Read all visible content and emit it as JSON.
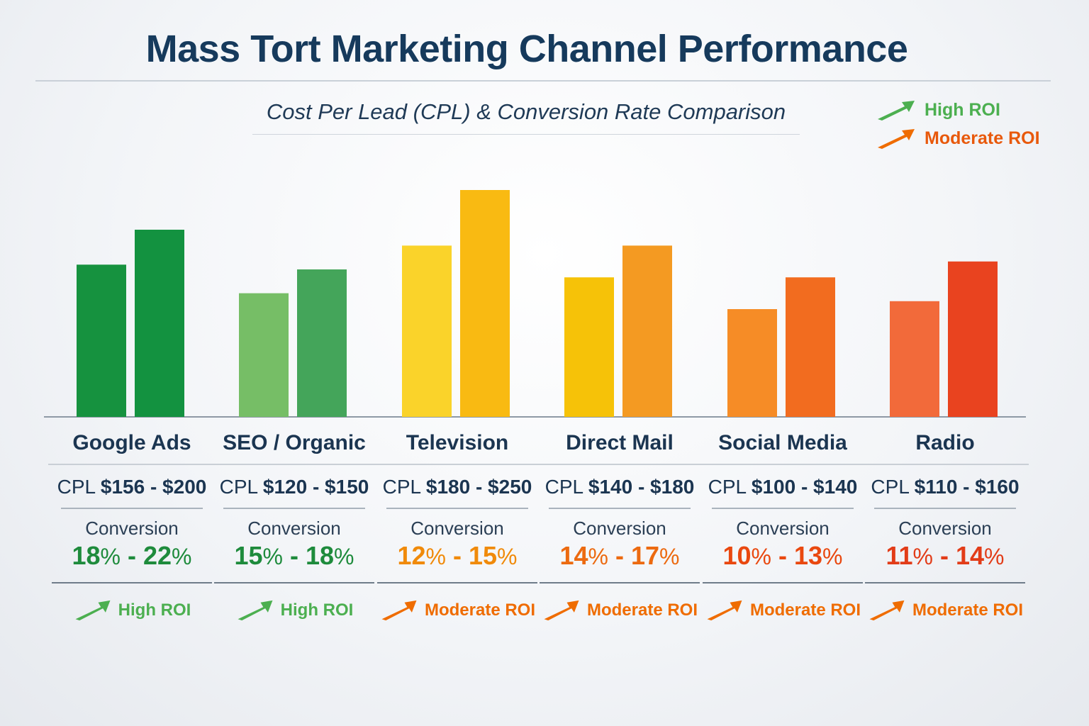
{
  "colors": {
    "high_roi": "#4caf50",
    "moderate_roi": "#ef6c00",
    "title": "#163a5c"
  },
  "legend": [
    {
      "label": "High ROI",
      "color": "#4caf50",
      "icon": "arrow-up-right-icon"
    },
    {
      "label": "Moderate ROI",
      "color": "#ef6c00",
      "icon": "arrow-up-right-icon"
    }
  ],
  "chart_data": {
    "type": "bar",
    "title": "Mass Tort Marketing Channel Performance",
    "subtitle": "Cost Per Lead (CPL) & Conversion Rate Comparison",
    "categories": [
      "Google Ads",
      "SEO / Organic",
      "Television",
      "Direct Mail",
      "Social Media",
      "Radio"
    ],
    "series": [
      {
        "values": [
          156,
          120,
          180,
          140,
          100,
          110
        ]
      },
      {
        "values": [
          200,
          150,
          250,
          180,
          140,
          160
        ]
      }
    ],
    "bar_colors": [
      [
        "#16923f",
        "#139240"
      ],
      [
        "#76be66",
        "#44a55a"
      ],
      [
        "#fad32a",
        "#f9ba12"
      ],
      [
        "#f6c208",
        "#f49a22"
      ],
      [
        "#f68c26",
        "#f26c1f"
      ],
      [
        "#f26a3a",
        "#e9431f"
      ]
    ],
    "channels": [
      {
        "name": "Google Ads",
        "cpl_prefix": "CPL",
        "cpl_range": "$156 - $200",
        "conversion_label": "Conversion",
        "conv_low": "18",
        "conv_high": "22",
        "pct": "%",
        "conv_color": "#1e8b3c",
        "roi": "High ROI",
        "roi_color": "#4caf50"
      },
      {
        "name": "SEO / Organic",
        "cpl_prefix": "CPL",
        "cpl_range": "$120 - $150",
        "conversion_label": "Conversion",
        "conv_low": "15",
        "conv_high": "18",
        "pct": "%",
        "conv_color": "#1e8b3c",
        "roi": "High ROI",
        "roi_color": "#4caf50"
      },
      {
        "name": "Television",
        "cpl_prefix": "CPL",
        "cpl_range": "$180 - $250",
        "conversion_label": "Conversion",
        "conv_low": "12",
        "conv_high": "15",
        "pct": "%",
        "conv_color": "#f08a0a",
        "roi": "Moderate ROI",
        "roi_color": "#ef6c00"
      },
      {
        "name": "Direct Mail",
        "cpl_prefix": "CPL",
        "cpl_range": "$140 - $180",
        "conversion_label": "Conversion",
        "conv_low": "14",
        "conv_high": "17",
        "pct": "%",
        "conv_color": "#ec6a10",
        "roi": "Moderate ROI",
        "roi_color": "#ef6c00"
      },
      {
        "name": "Social Media",
        "cpl_prefix": "CPL",
        "cpl_range": "$100 - $140",
        "conversion_label": "Conversion",
        "conv_low": "10",
        "conv_high": "13",
        "pct": "%",
        "conv_color": "#e9480f",
        "roi": "Moderate ROI",
        "roi_color": "#ef6c00"
      },
      {
        "name": "Radio",
        "cpl_prefix": "CPL",
        "cpl_range": "$110 - $160",
        "conversion_label": "Conversion",
        "conv_low": "11",
        "conv_high": "14",
        "pct": "%",
        "conv_color": "#e23c18",
        "roi": "Moderate ROI",
        "roi_color": "#ef6c00"
      }
    ]
  }
}
